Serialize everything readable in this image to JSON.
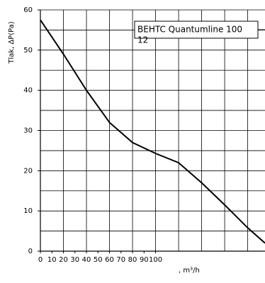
{
  "chart_data": {
    "type": "line",
    "y_label": "Tlak, ΔP(Pa)",
    "x_label": ", m³/h",
    "legend_lines": [
      "BEHTC Quantumline 100",
      "12"
    ],
    "x": [
      0,
      20,
      40,
      60,
      80,
      100,
      120,
      140,
      160,
      180,
      195
    ],
    "series": [
      {
        "name": "BEHTC Quantumline 100 12",
        "color": "#000000",
        "values": [
          57.5,
          49,
          40,
          32,
          27,
          24.3,
          22,
          17,
          11.5,
          5.8,
          2
        ]
      }
    ],
    "xlim": [
      0,
      195
    ],
    "ylim": [
      0,
      60
    ],
    "xticks": [
      0,
      10,
      20,
      30,
      40,
      50,
      60,
      70,
      80,
      90,
      100
    ],
    "yticks": [
      0,
      10,
      20,
      30,
      40,
      50,
      60
    ],
    "xgrid": [
      0,
      20,
      40,
      60,
      80,
      100,
      120,
      140,
      160,
      180
    ],
    "ygrid": [
      0,
      5,
      10,
      15,
      20,
      25,
      30,
      35,
      40,
      45,
      50,
      55,
      60
    ],
    "grid": true
  }
}
